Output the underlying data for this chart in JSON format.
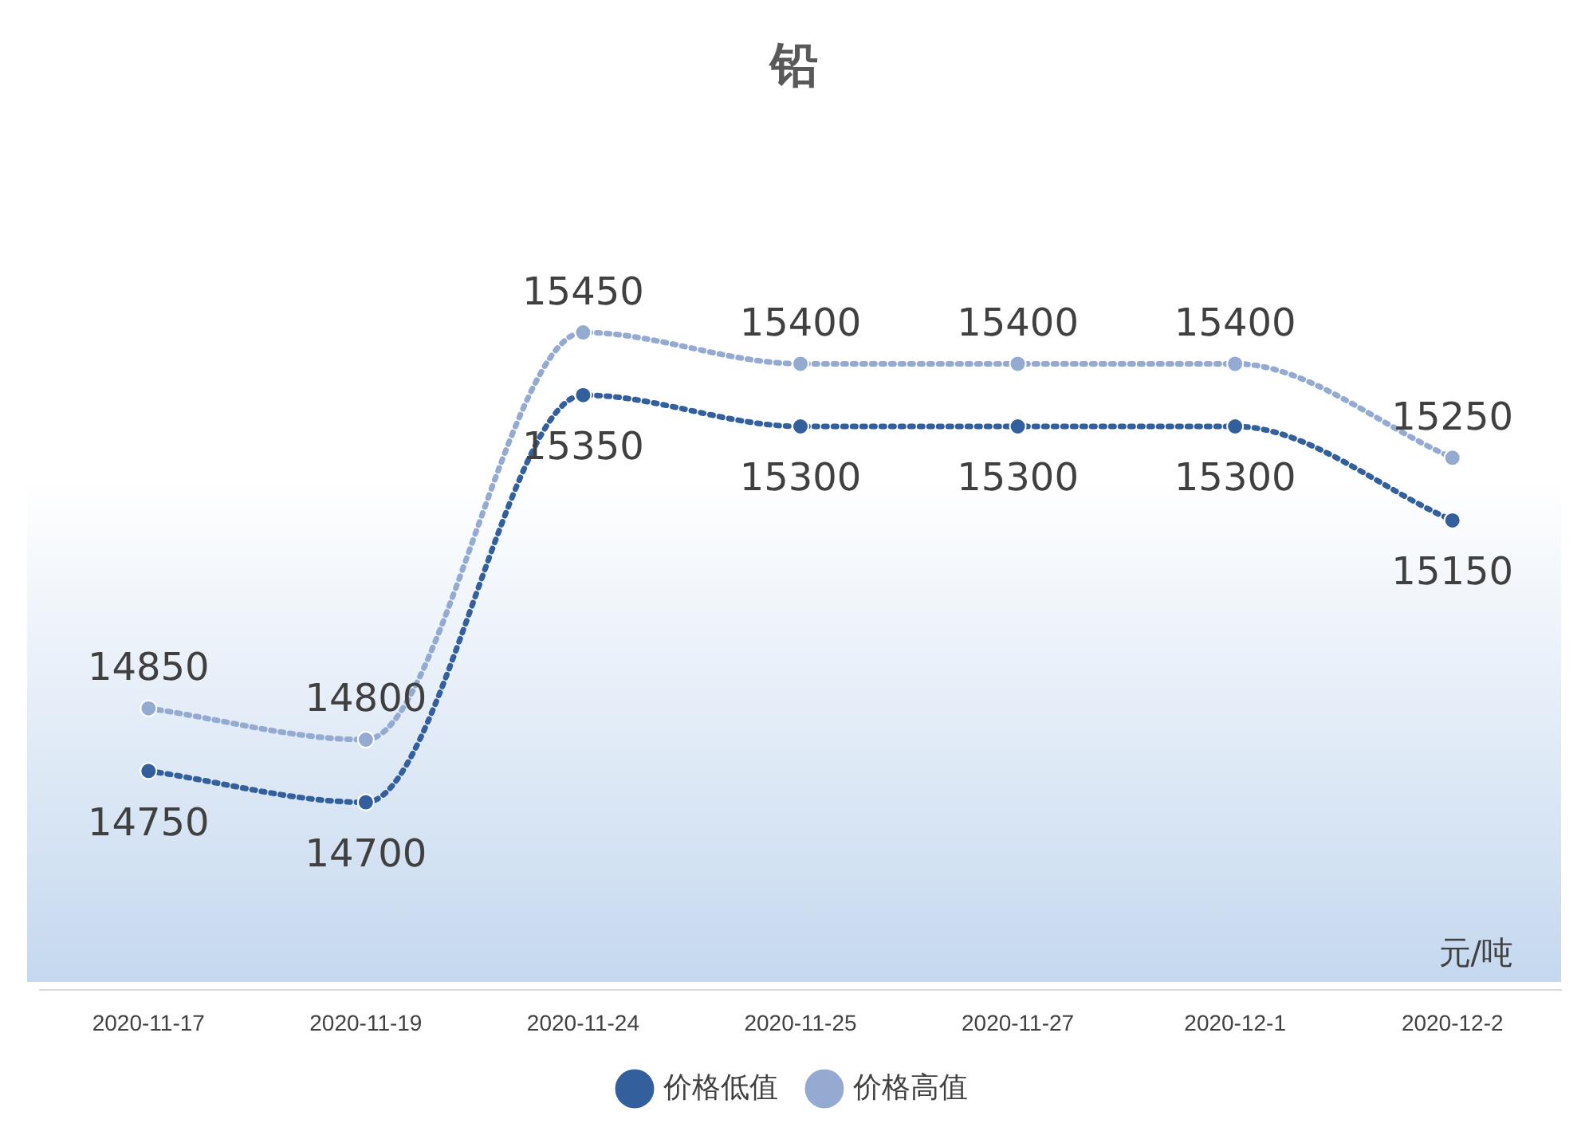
{
  "chart_data": {
    "type": "line",
    "title": "铅",
    "categories": [
      "2020-11-17",
      "2020-11-19",
      "2020-11-24",
      "2020-11-25",
      "2020-11-27",
      "2020-12-1",
      "2020-12-2"
    ],
    "series": [
      {
        "name": "价格低值",
        "color": "#335f9c",
        "values": [
          14750,
          14700,
          15350,
          15300,
          15300,
          15300,
          15150
        ]
      },
      {
        "name": "价格高值",
        "color": "#94aad0",
        "values": [
          14850,
          14800,
          15450,
          15400,
          15400,
          15400,
          15250
        ]
      }
    ],
    "tick_labels": "x",
    "grid": false,
    "legend": "bottom",
    "marker": "circle",
    "line_style": "dotted",
    "data_labels": true,
    "annotations": [
      "元/吨"
    ]
  }
}
